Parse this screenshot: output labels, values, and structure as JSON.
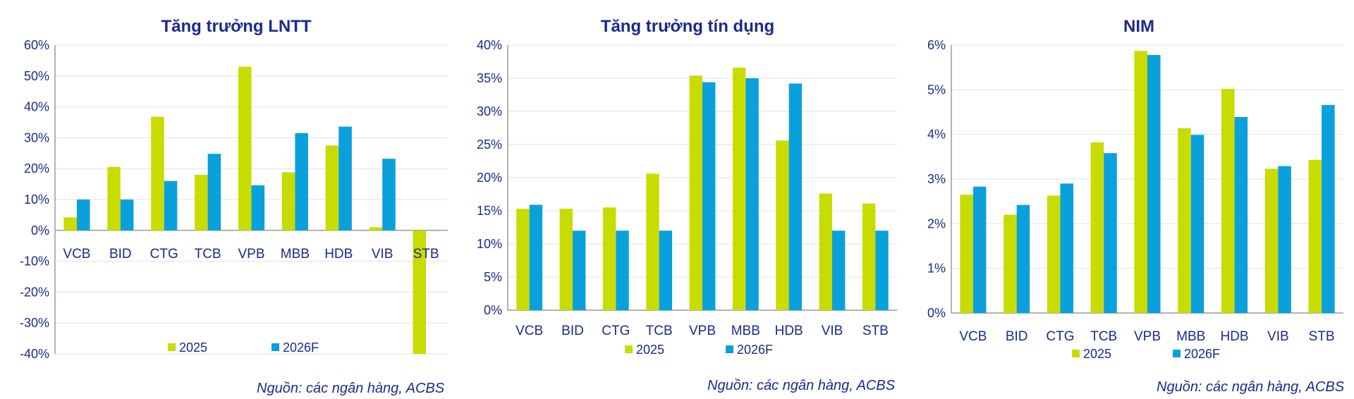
{
  "colors": {
    "s2025": "#c8dc00",
    "s2026": "#0aa0dc",
    "text": "#1a2a8c",
    "grid": "#e3e3e3",
    "axis": "#9a9a9a"
  },
  "chart_data": [
    {
      "type": "bar",
      "title": "Tăng trưởng LNTT",
      "source": "Nguồn:  các ngân hàng, ACBS",
      "categories": [
        "VCB",
        "BID",
        "CTG",
        "TCB",
        "VPB",
        "MBB",
        "HDB",
        "VIB",
        "STB"
      ],
      "yticks": [
        "60%",
        "50%",
        "40%",
        "30%",
        "20%",
        "10%",
        "0%",
        "-10%",
        "-20%",
        "-30%",
        "-40%"
      ],
      "ylim": [
        -40,
        60
      ],
      "series": [
        {
          "name": "2025",
          "values": [
            4.2,
            20.5,
            36.8,
            18.0,
            53.0,
            18.8,
            27.5,
            1.0,
            -40.0
          ]
        },
        {
          "name": "2026F",
          "values": [
            10.0,
            10.0,
            16.0,
            24.8,
            14.6,
            31.5,
            33.6,
            23.2,
            0
          ]
        }
      ]
    },
    {
      "type": "bar",
      "title": "Tăng trưởng tín dụng",
      "source": "Nguồn:  các ngân hàng, ACBS",
      "categories": [
        "VCB",
        "BID",
        "CTG",
        "TCB",
        "VPB",
        "MBB",
        "HDB",
        "VIB",
        "STB"
      ],
      "yticks": [
        "40%",
        "35%",
        "30%",
        "25%",
        "20%",
        "15%",
        "10%",
        "5%",
        "0%"
      ],
      "ylim": [
        0,
        40
      ],
      "series": [
        {
          "name": "2025",
          "values": [
            15.3,
            15.3,
            15.5,
            20.6,
            35.4,
            36.6,
            25.6,
            17.6,
            16.1
          ]
        },
        {
          "name": "2026F",
          "values": [
            15.9,
            12.0,
            12.0,
            12.0,
            34.4,
            35.0,
            34.2,
            12.0,
            12.0
          ]
        }
      ]
    },
    {
      "type": "bar",
      "title": "NIM",
      "source": "Nguồn:  các ngân hàng, ACBS",
      "categories": [
        "VCB",
        "BID",
        "CTG",
        "TCB",
        "VPB",
        "MBB",
        "HDB",
        "VIB",
        "STB"
      ],
      "yticks": [
        "6%",
        "5%",
        "4%",
        "3%",
        "2%",
        "1%",
        "0%"
      ],
      "ylim": [
        0,
        6
      ],
      "series": [
        {
          "name": "2025",
          "values": [
            2.65,
            2.2,
            2.63,
            3.82,
            5.87,
            4.14,
            5.02,
            3.23,
            3.43
          ]
        },
        {
          "name": "2026F",
          "values": [
            2.83,
            2.42,
            2.9,
            3.58,
            5.78,
            3.99,
            4.39,
            3.29,
            4.66
          ]
        }
      ]
    }
  ]
}
